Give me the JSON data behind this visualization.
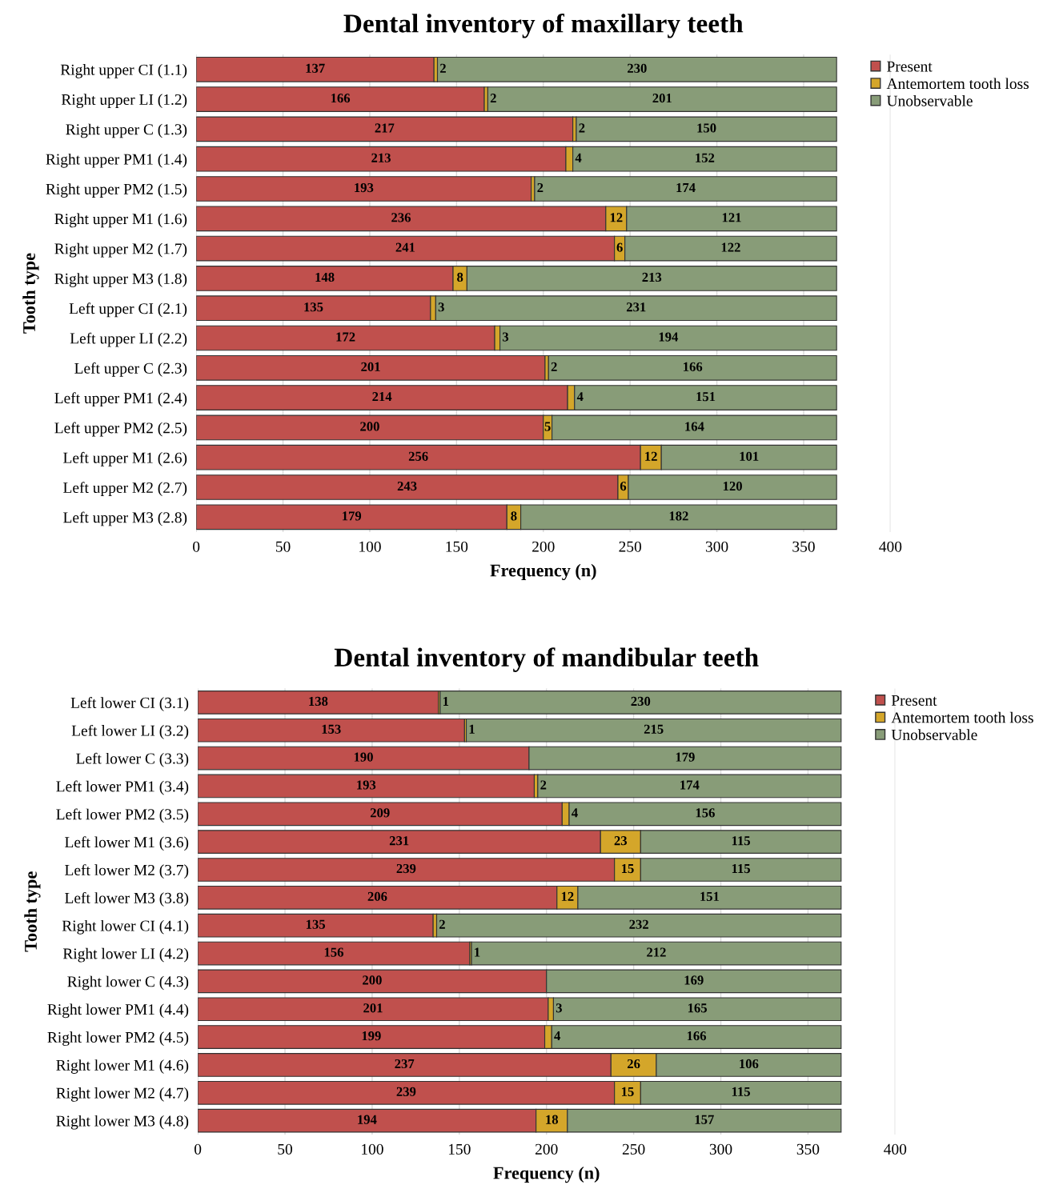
{
  "chart_data": [
    {
      "type": "bar",
      "orientation": "horizontal",
      "stacked": true,
      "title": "Dental inventory of maxillary teeth",
      "xlabel": "Frequency (n)",
      "ylabel": "Tooth type",
      "categories": [
        "Right upper CI (1.1)",
        "Right upper LI (1.2)",
        "Right upper C (1.3)",
        "Right upper PM1 (1.4)",
        "Right upper PM2 (1.5)",
        "Right upper M1 (1.6)",
        "Right upper M2 (1.7)",
        "Right upper M3 (1.8)",
        "Left upper CI (2.1)",
        "Left upper LI (2.2)",
        "Left upper C (2.3)",
        "Left upper PM1 (2.4)",
        "Left upper PM2 (2.5)",
        "Left upper M1 (2.6)",
        "Left upper M2 (2.7)",
        "Left upper M3 (2.8)"
      ],
      "series": [
        {
          "name": "Present",
          "color": "#c0504d",
          "values": [
            137,
            166,
            217,
            213,
            193,
            236,
            241,
            148,
            135,
            172,
            201,
            214,
            200,
            256,
            243,
            179
          ],
          "value_labels": [
            "137",
            "166",
            "217",
            "213",
            "193",
            "236",
            "241",
            "148",
            "135",
            "172",
            "201",
            "214",
            "200",
            "256",
            "243",
            "179"
          ]
        },
        {
          "name": "Antemortem tooth loss",
          "color": "#d4a62a",
          "values": [
            2,
            2,
            2,
            4,
            2,
            12,
            6,
            8,
            3,
            3,
            2,
            4,
            5,
            12,
            6,
            8
          ],
          "value_labels": [
            "2",
            "2",
            "2",
            "4",
            "2",
            "12",
            "6",
            "8",
            "3",
            "3",
            "2",
            "4",
            "5",
            "12",
            "6",
            "8"
          ]
        },
        {
          "name": "Unobservable",
          "color": "#889c78",
          "values": [
            230,
            201,
            150,
            152,
            174,
            121,
            122,
            213,
            231,
            194,
            166,
            151,
            164,
            101,
            120,
            182
          ],
          "value_labels": [
            "230",
            "201",
            "150",
            "152",
            "174",
            "121",
            "122",
            "213",
            "231",
            "194",
            "166",
            "151",
            "164",
            "101",
            "120",
            "182"
          ]
        }
      ],
      "xlim": [
        0,
        400
      ],
      "xticks": [
        0,
        50,
        100,
        150,
        200,
        250,
        300,
        350,
        400
      ],
      "grid": "x",
      "legend": "top right"
    },
    {
      "type": "bar",
      "orientation": "horizontal",
      "stacked": true,
      "title": "Dental inventory of mandibular teeth",
      "xlabel": "Frequency (n)",
      "ylabel": "Tooth type",
      "categories": [
        "Left lower CI (3.1)",
        "Left lower LI (3.2)",
        "Left lower C (3.3)",
        "Left lower PM1 (3.4)",
        "Left lower PM2 (3.5)",
        "Left lower M1 (3.6)",
        "Left lower M2 (3.7)",
        "Left lower M3 (3.8)",
        "Right lower CI (4.1)",
        "Right lower LI (4.2)",
        "Right lower C (4.3)",
        "Right lower PM1 (4.4)",
        "Right lower PM2 (4.5)",
        "Right lower M1 (4.6)",
        "Right lower M2 (4.7)",
        "Right lower M3 (4.8)"
      ],
      "series": [
        {
          "name": "Present",
          "color": "#c0504d",
          "values": [
            138,
            153,
            190,
            193,
            209,
            231,
            239,
            206,
            135,
            156,
            200,
            201,
            199,
            237,
            239,
            194
          ],
          "value_labels": [
            "138",
            "153",
            "190",
            "193",
            "209",
            "231",
            "239",
            "206",
            "135",
            "156",
            "200",
            "201",
            "199",
            "237",
            "239",
            "194"
          ]
        },
        {
          "name": "Antemortem tooth loss",
          "color": "#d4a62a",
          "values": [
            1,
            1,
            0,
            2,
            4,
            23,
            15,
            12,
            2,
            1,
            0,
            3,
            4,
            26,
            15,
            18
          ],
          "value_labels": [
            "1",
            "1",
            null,
            "2",
            "4",
            "23",
            "15",
            "12",
            "2",
            "1",
            null,
            "3",
            "4",
            "26",
            "15",
            "18"
          ]
        },
        {
          "name": "Unobservable",
          "color": "#889c78",
          "values": [
            230,
            215,
            179,
            174,
            156,
            115,
            115,
            151,
            232,
            212,
            169,
            165,
            166,
            106,
            115,
            157
          ],
          "value_labels": [
            "230",
            "215",
            "179",
            "174",
            "156",
            "115",
            "115",
            "151",
            "232",
            "212",
            "169",
            "165",
            "166",
            "106",
            "115",
            "157"
          ]
        }
      ],
      "xlim": [
        0,
        400
      ],
      "xticks": [
        0,
        50,
        100,
        150,
        200,
        250,
        300,
        350,
        400
      ],
      "grid": "x",
      "legend": "top right"
    }
  ]
}
